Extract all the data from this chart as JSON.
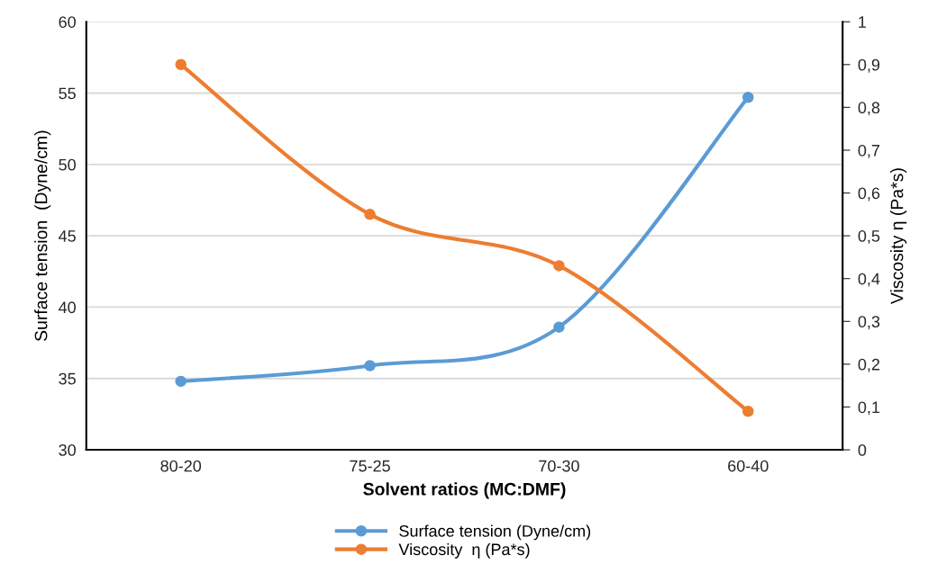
{
  "chart_data": {
    "type": "line",
    "xlabel": "Solvent ratios (MC:DMF)",
    "ylabel": "Surface tension  (Dyne/cm)",
    "y2label": "Viscosity η (Pa*s)",
    "categories": [
      "80-20",
      "75-25",
      "70-30",
      "60-40"
    ],
    "series": [
      {
        "name": "Surface tension (Dyne/cm)",
        "color": "#5b9bd5",
        "values": [
          34.8,
          35.9,
          38.6,
          54.7
        ]
      },
      {
        "name": "Viscosity  η (Pa*s)",
        "color": "#ed7d31",
        "axis": "y2",
        "values": [
          0.9,
          0.55,
          0.43,
          0.09
        ]
      }
    ],
    "ylim": [
      30,
      60
    ],
    "yticks": [
      30,
      35,
      40,
      45,
      50,
      55,
      60
    ],
    "y2lim": [
      0,
      1
    ],
    "y2ticks": [
      0,
      {
        "value": 0.1,
        "label": "0,1"
      },
      {
        "value": 0.2,
        "label": "0,2"
      },
      {
        "value": 0.3,
        "label": "0,3"
      },
      {
        "value": 0.4,
        "label": "0,4"
      },
      {
        "value": 0.5,
        "label": "0,5"
      },
      {
        "value": 0.6,
        "label": "0,6"
      },
      {
        "value": 0.7,
        "label": "0,7"
      },
      {
        "value": 0.8,
        "label": "0,8"
      },
      {
        "value": 0.9,
        "label": "0,9"
      },
      1
    ],
    "grid": "y",
    "legend": "bottom",
    "marker": "circle",
    "line_style": "solid"
  }
}
